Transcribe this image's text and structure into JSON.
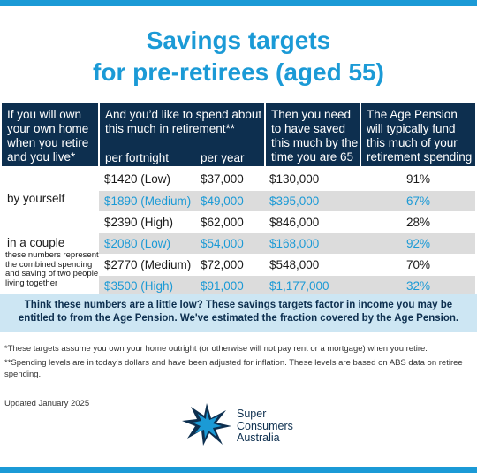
{
  "title": {
    "line1": "Savings targets",
    "line2": "for pre-retirees (aged 55)"
  },
  "header": {
    "col1": "If you will own your own home when you retire and you live*",
    "col2": "And you’d like to spend about this much in retirement**",
    "col2_sub1": "per fortnight",
    "col2_sub2": "per year",
    "col3": "Then you need to have saved this much by the time you are 65",
    "col4": "The Age Pension will typically fund this much of your retirement spending"
  },
  "groups": {
    "yourself": {
      "label": "by yourself"
    },
    "couple": {
      "label": "in a couple",
      "sub": "these numbers represent the combined spending and saving of two people living together"
    }
  },
  "rows": [
    {
      "fortnight": "$1420 (Low)",
      "year": "$37,000",
      "saved": "$130,000",
      "pension": "91%"
    },
    {
      "fortnight": "$1890 (Medium)",
      "year": "$49,000",
      "saved": "$395,000",
      "pension": "67%"
    },
    {
      "fortnight": "$2390 (High)",
      "year": "$62,000",
      "saved": "$846,000",
      "pension": "28%"
    },
    {
      "fortnight": "$2080 (Low)",
      "year": "$54,000",
      "saved": "$168,000",
      "pension": "92%"
    },
    {
      "fortnight": "$2770 (Medium)",
      "year": "$72,000",
      "saved": "$548,000",
      "pension": "70%"
    },
    {
      "fortnight": "$3500 (High)",
      "year": "$91,000",
      "saved": "$1,177,000",
      "pension": "32%"
    }
  ],
  "note": "Think these numbers are a little low? These savings targets factor in income you may be entitled to from the Age Pension. We've estimated the fraction covered by the Age Pension.",
  "footnotes": {
    "f1": "*These targets assume you own your home outright (or otherwise will not pay rent or a mortgage) when you retire.",
    "f2": "**Spending levels are in today's dollars and have been adjusted for inflation. These levels are based on ABS data on retiree spending."
  },
  "updated": "Updated January 2025",
  "brand": {
    "line1": "Super",
    "line2": "Consumers",
    "line3": "Australia",
    "icon": "southern-cross-star-logo"
  },
  "colors": {
    "accent_blue": "#1b9ad6",
    "navy": "#0d2f4f",
    "row_shade": "#dcdcdc",
    "note_bg": "#cde6f3"
  }
}
